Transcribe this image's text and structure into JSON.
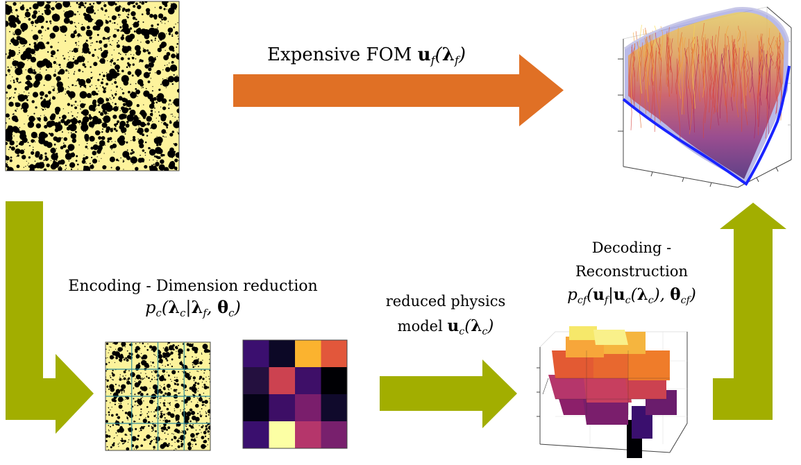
{
  "labels": {
    "fom": "Expensive FOM",
    "fom_math": "u_f(λ_f)",
    "encoding_line1": "Encoding - Dimension reduction",
    "encoding_math": "p_c(λ_c|λ_f, θ_c)",
    "reduced_line1": "reduced physics",
    "reduced_line2": "model",
    "reduced_math": "u_c(λ_c)",
    "decoding_line1": "Decoding -",
    "decoding_line2": "Reconstruction",
    "decoding_math": "p_cf(u_f|u_c(λ_c), θ_cf)"
  },
  "colors": {
    "orange_arrow": "#e07025",
    "green_arrow": "#a2ae00",
    "microstructure_bg": "#fdf39c",
    "particles": "#000000",
    "grid_lines": "#2f8c9a"
  },
  "heatmap": {
    "colors": [
      [
        "#3b0f6f",
        "#0c0826",
        "#fbb32f",
        "#e2573b"
      ],
      [
        "#24103f",
        "#cc4250",
        "#3e0f68",
        "#000004"
      ],
      [
        "#050316",
        "#3d0e66",
        "#7a1e6c",
        "#100a2c"
      ],
      [
        "#3a0f6e",
        "#fcffa4",
        "#b5366b",
        "#78206d"
      ]
    ]
  }
}
